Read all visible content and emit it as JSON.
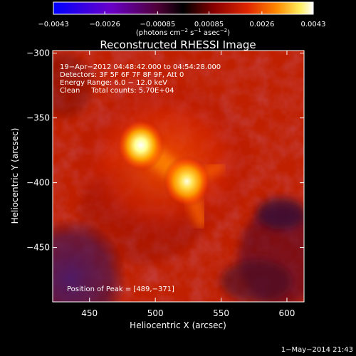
{
  "chart_data": {
    "type": "heatmap",
    "title": "Reconstructed RHESSI Image",
    "xlabel": "Heliocentric X (arcsec)",
    "ylabel": "Heliocentric Y (arcsec)",
    "xlim": [
      422,
      613
    ],
    "ylim": [
      -492,
      -298
    ],
    "x_ticks": [
      450,
      500,
      550,
      600
    ],
    "x_tick_labels": [
      "450",
      "500",
      "550",
      "600"
    ],
    "y_ticks": [
      -300,
      -350,
      -400,
      -450
    ],
    "y_tick_labels": [
      "−300",
      "−350",
      "−400",
      "−450"
    ],
    "colorbar": {
      "min": -0.0043,
      "max": 0.0043,
      "ticks": [
        -0.0043,
        -0.0026,
        -0.00085,
        0.00085,
        0.0026,
        0.0043
      ],
      "tick_labels": [
        "−0.0043",
        "−0.0026",
        "−0.00085",
        "0.00085",
        "0.0026",
        "0.0043"
      ],
      "unit_main": "(photons cm",
      "unit_sup1": "−2",
      "unit_mid": " s",
      "unit_sup2": "−1",
      "unit_mid2": " asec",
      "unit_sup3": "−2",
      "unit_end": ")",
      "colors": [
        "#0000ff",
        "#8000c0",
        "#600040",
        "#000000",
        "#800000",
        "#e03000",
        "#ff9000",
        "#ffff80",
        "#ffffff"
      ]
    },
    "annotations": [
      "19−Apr−2012 04:48:42.000 to 04:54:28.000",
      "Detectors: 3F 5F 6F 7F 8F 9F, Att 0",
      "Energy Range: 6.0 − 12.0 keV",
      "Clean     Total counts: 5.70E+04"
    ],
    "peak_label": "Position of Peak = [489,−371]",
    "sources": [
      {
        "x": 489,
        "y": -371,
        "relative_intensity": 1.0
      },
      {
        "x": 524,
        "y": -399,
        "relative_intensity": 0.95
      }
    ],
    "background_level": 0.0006,
    "negative_region": {
      "x_range": [
        422,
        470
      ],
      "y_range": [
        -492,
        -440
      ],
      "level": -0.0008
    }
  },
  "footer": {
    "date": "1−May−2014 21:43"
  }
}
